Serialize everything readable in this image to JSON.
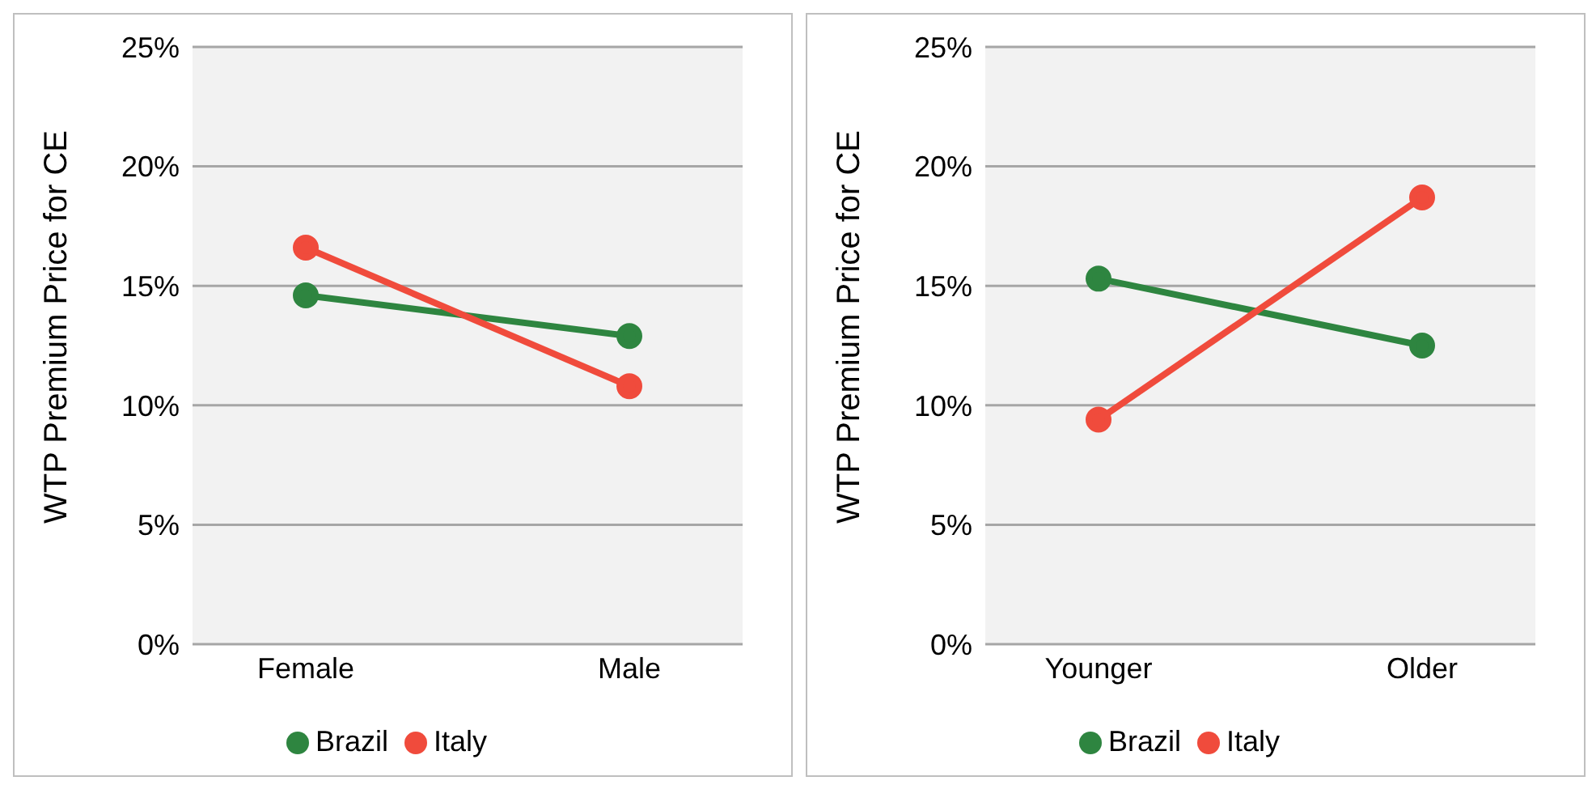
{
  "chart_data": [
    {
      "type": "line",
      "ylabel": "WTP Premium Price for CE",
      "categories": [
        "Female",
        "Male"
      ],
      "series": [
        {
          "name": "Brazil",
          "color": "#2e8540",
          "values": [
            14.6,
            12.9
          ]
        },
        {
          "name": "Italy",
          "color": "#f04b3c",
          "values": [
            16.6,
            10.8
          ]
        }
      ],
      "ylim": [
        0,
        25
      ],
      "yticks": [
        {
          "value": 0,
          "label": "0%"
        },
        {
          "value": 5,
          "label": "5%"
        },
        {
          "value": 10,
          "label": "10%"
        },
        {
          "value": 15,
          "label": "15%"
        },
        {
          "value": 20,
          "label": "20%"
        },
        {
          "value": 25,
          "label": "25%"
        }
      ],
      "grid": "y",
      "legend": "bottom",
      "marker": "circle"
    },
    {
      "type": "line",
      "ylabel": "WTP Premium Price for CE",
      "categories": [
        "Younger",
        "Older"
      ],
      "series": [
        {
          "name": "Brazil",
          "color": "#2e8540",
          "values": [
            15.3,
            12.5
          ]
        },
        {
          "name": "Italy",
          "color": "#f04b3c",
          "values": [
            9.4,
            18.7
          ]
        }
      ],
      "ylim": [
        0,
        25
      ],
      "yticks": [
        {
          "value": 0,
          "label": "0%"
        },
        {
          "value": 5,
          "label": "5%"
        },
        {
          "value": 10,
          "label": "10%"
        },
        {
          "value": 15,
          "label": "15%"
        },
        {
          "value": 20,
          "label": "20%"
        },
        {
          "value": 25,
          "label": "25%"
        }
      ],
      "grid": "y",
      "legend": "bottom",
      "marker": "circle"
    }
  ]
}
